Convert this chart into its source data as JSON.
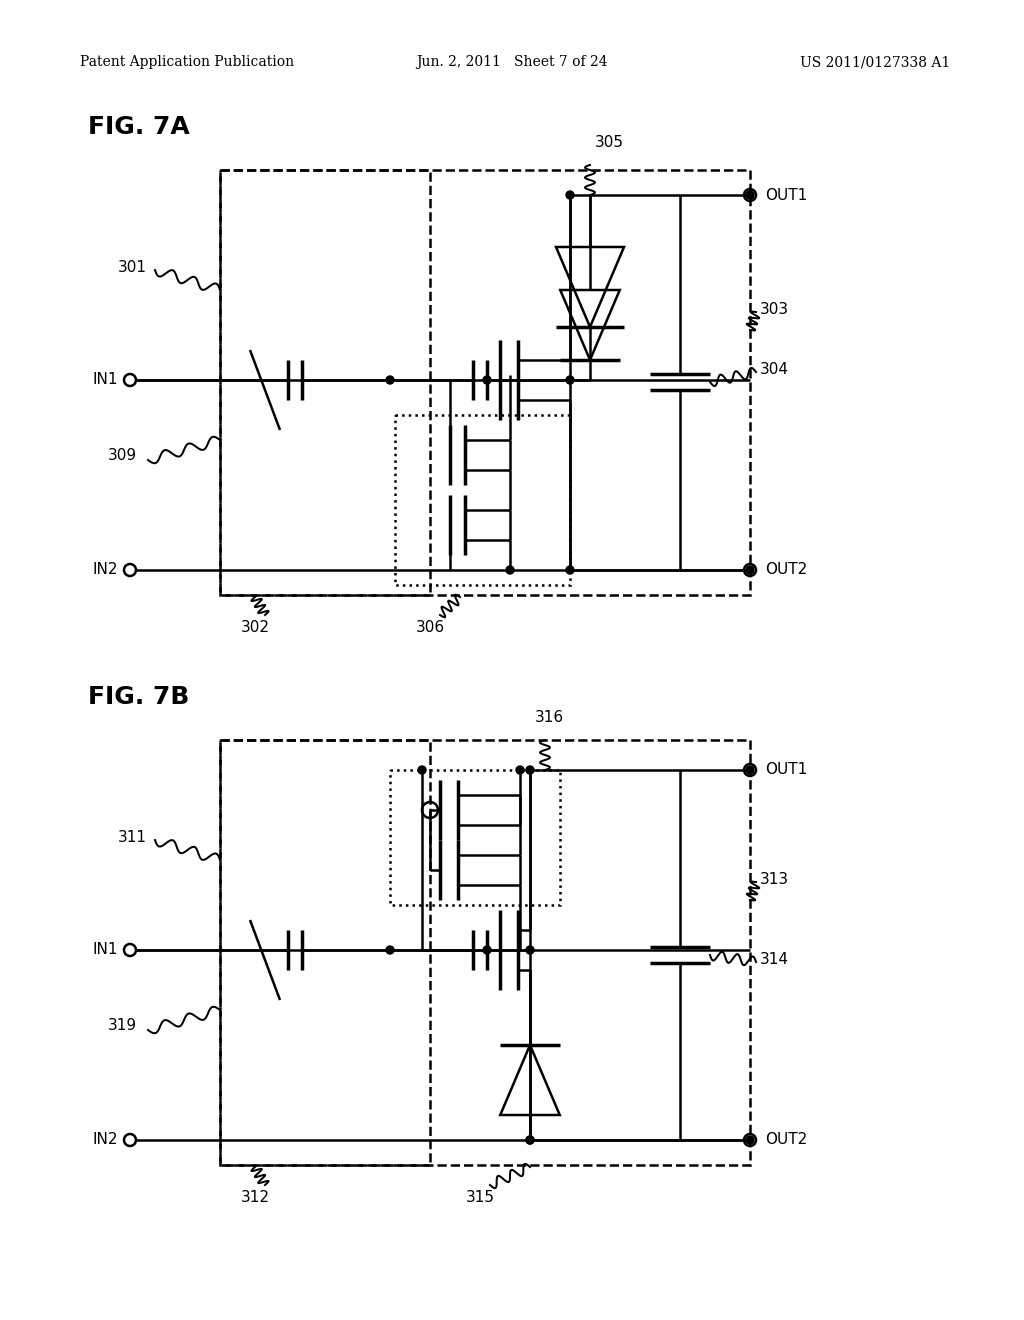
{
  "bg_color": "#ffffff",
  "header_left": "Patent Application Publication",
  "header_mid": "Jun. 2, 2011   Sheet 7 of 24",
  "header_right": "US 2011/0127338 A1"
}
